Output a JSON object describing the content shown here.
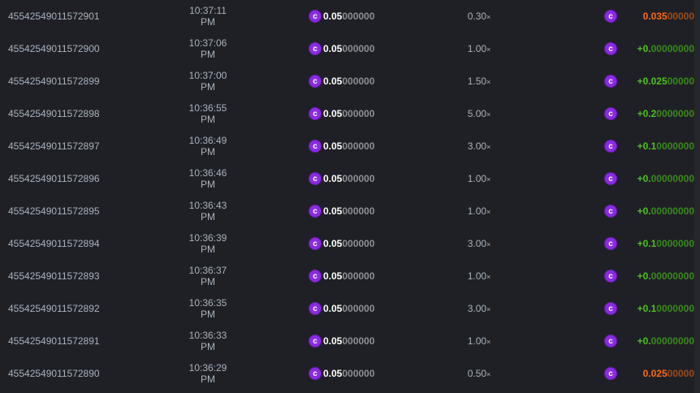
{
  "colors": {
    "background": "#1f2025",
    "coin": "#8a2be2",
    "win": "#4bc21a",
    "lose": "#ff6a13"
  },
  "rows": [
    {
      "id": "45542549011572901",
      "time": "10:37:11 PM",
      "bet_bright": "0.05",
      "bet_dim": "000000",
      "mult": "0.30",
      "mult_suffix": "×",
      "pay_bright": "0.035",
      "pay_dim": "00000",
      "result": "lose"
    },
    {
      "id": "45542549011572900",
      "time": "10:37:06 PM",
      "bet_bright": "0.05",
      "bet_dim": "000000",
      "mult": "1.00",
      "mult_suffix": "×",
      "pay_bright": "+0.",
      "pay_dim": "00000000",
      "result": "win"
    },
    {
      "id": "45542549011572899",
      "time": "10:37:00 PM",
      "bet_bright": "0.05",
      "bet_dim": "000000",
      "mult": "1.50",
      "mult_suffix": "×",
      "pay_bright": "+0.025",
      "pay_dim": "00000",
      "result": "win"
    },
    {
      "id": "45542549011572898",
      "time": "10:36:55 PM",
      "bet_bright": "0.05",
      "bet_dim": "000000",
      "mult": "5.00",
      "mult_suffix": "×",
      "pay_bright": "+0.2",
      "pay_dim": "0000000",
      "result": "win"
    },
    {
      "id": "45542549011572897",
      "time": "10:36:49 PM",
      "bet_bright": "0.05",
      "bet_dim": "000000",
      "mult": "3.00",
      "mult_suffix": "×",
      "pay_bright": "+0.1",
      "pay_dim": "0000000",
      "result": "win"
    },
    {
      "id": "45542549011572896",
      "time": "10:36:46 PM",
      "bet_bright": "0.05",
      "bet_dim": "000000",
      "mult": "1.00",
      "mult_suffix": "×",
      "pay_bright": "+0.",
      "pay_dim": "00000000",
      "result": "win"
    },
    {
      "id": "45542549011572895",
      "time": "10:36:43 PM",
      "bet_bright": "0.05",
      "bet_dim": "000000",
      "mult": "1.00",
      "mult_suffix": "×",
      "pay_bright": "+0.",
      "pay_dim": "00000000",
      "result": "win"
    },
    {
      "id": "45542549011572894",
      "time": "10:36:39 PM",
      "bet_bright": "0.05",
      "bet_dim": "000000",
      "mult": "3.00",
      "mult_suffix": "×",
      "pay_bright": "+0.1",
      "pay_dim": "0000000",
      "result": "win"
    },
    {
      "id": "45542549011572893",
      "time": "10:36:37 PM",
      "bet_bright": "0.05",
      "bet_dim": "000000",
      "mult": "1.00",
      "mult_suffix": "×",
      "pay_bright": "+0.",
      "pay_dim": "00000000",
      "result": "win"
    },
    {
      "id": "45542549011572892",
      "time": "10:36:35 PM",
      "bet_bright": "0.05",
      "bet_dim": "000000",
      "mult": "3.00",
      "mult_suffix": "×",
      "pay_bright": "+0.1",
      "pay_dim": "0000000",
      "result": "win"
    },
    {
      "id": "45542549011572891",
      "time": "10:36:33 PM",
      "bet_bright": "0.05",
      "bet_dim": "000000",
      "mult": "1.00",
      "mult_suffix": "×",
      "pay_bright": "+0.",
      "pay_dim": "00000000",
      "result": "win"
    },
    {
      "id": "45542549011572890",
      "time": "10:36:29 PM",
      "bet_bright": "0.05",
      "bet_dim": "000000",
      "mult": "0.50",
      "mult_suffix": "×",
      "pay_bright": "0.025",
      "pay_dim": "00000",
      "result": "lose"
    }
  ]
}
